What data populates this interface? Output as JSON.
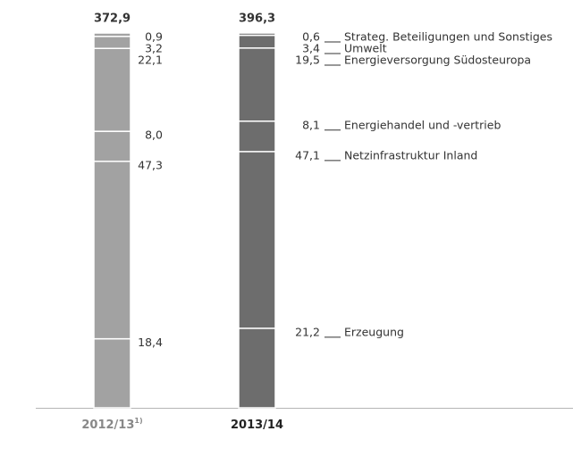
{
  "chart_data": {
    "type": "stacked_bar",
    "categories": [
      "2012/13",
      "2013/14"
    ],
    "footnotes": [
      "1)"
    ],
    "totals": [
      {
        "value": 372.9,
        "label": "372,9"
      },
      {
        "value": 396.3,
        "label": "396,3"
      }
    ],
    "colors": [
      "#a2a2a2",
      "#6d6d6d"
    ],
    "series": [
      {
        "name": "Erzeugung",
        "values": [
          18.4,
          21.2
        ],
        "value_labels": [
          "18,4",
          "21,2"
        ]
      },
      {
        "name": "Netzinfrastruktur Inland",
        "values": [
          47.3,
          47.1
        ],
        "value_labels": [
          "47,3",
          "47,1"
        ]
      },
      {
        "name": "Energiehandel und -vertrieb",
        "values": [
          8.0,
          8.1
        ],
        "value_labels": [
          "8,0",
          "8,1"
        ]
      },
      {
        "name": "Energieversorgung Südosteuropa",
        "values": [
          22.1,
          19.5
        ],
        "value_labels": [
          "22,1",
          "19,5"
        ]
      },
      {
        "name": "Umwelt",
        "values": [
          3.2,
          3.4
        ],
        "value_labels": [
          "3,2",
          "3,4"
        ]
      },
      {
        "name": "Strateg. Beteiligungen und Sonstiges",
        "values": [
          0.9,
          0.6
        ],
        "value_labels": [
          "0,9",
          "0,6"
        ]
      }
    ]
  }
}
